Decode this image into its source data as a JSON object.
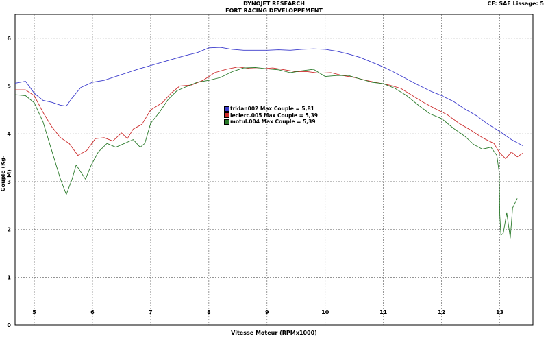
{
  "header": {
    "title_line1": "DYNOJET RESEARCH",
    "title_line2": "FORT RACING DEVELOPPEMENT",
    "cf_info": "CF: SAE  Lissage: 5"
  },
  "chart_data": {
    "type": "line",
    "xlabel": "Vitesse Moteur (RPMx1000)",
    "ylabel": "Couple (Kg-M)",
    "xlim": [
      4.67,
      13.57
    ],
    "ylim": [
      0,
      6.5
    ],
    "x_ticks": [
      "5",
      "6",
      "7",
      "8",
      "9",
      "10",
      "11",
      "12",
      "13"
    ],
    "y_ticks": [
      "0",
      "1",
      "2",
      "3",
      "4",
      "5",
      "6"
    ],
    "grid": true,
    "legend_position": "center-left",
    "series": [
      {
        "name": "tridan002 Max Couple = 5,81",
        "legend": "tridan002 Max Couple = 5,81",
        "color": "#3a3acc",
        "points": [
          [
            4.67,
            5.06
          ],
          [
            4.85,
            5.1
          ],
          [
            5.0,
            4.85
          ],
          [
            5.15,
            4.7
          ],
          [
            5.3,
            4.66
          ],
          [
            5.45,
            4.6
          ],
          [
            5.55,
            4.58
          ],
          [
            5.65,
            4.75
          ],
          [
            5.8,
            4.97
          ],
          [
            6.0,
            5.08
          ],
          [
            6.2,
            5.12
          ],
          [
            6.4,
            5.2
          ],
          [
            6.6,
            5.28
          ],
          [
            6.8,
            5.36
          ],
          [
            7.0,
            5.43
          ],
          [
            7.2,
            5.5
          ],
          [
            7.4,
            5.57
          ],
          [
            7.6,
            5.64
          ],
          [
            7.8,
            5.7
          ],
          [
            8.0,
            5.8
          ],
          [
            8.2,
            5.81
          ],
          [
            8.4,
            5.77
          ],
          [
            8.6,
            5.75
          ],
          [
            8.8,
            5.75
          ],
          [
            9.0,
            5.75
          ],
          [
            9.2,
            5.76
          ],
          [
            9.4,
            5.75
          ],
          [
            9.6,
            5.77
          ],
          [
            9.8,
            5.78
          ],
          [
            10.0,
            5.77
          ],
          [
            10.2,
            5.73
          ],
          [
            10.4,
            5.67
          ],
          [
            10.6,
            5.6
          ],
          [
            10.8,
            5.5
          ],
          [
            11.0,
            5.4
          ],
          [
            11.2,
            5.28
          ],
          [
            11.4,
            5.15
          ],
          [
            11.6,
            5.02
          ],
          [
            11.8,
            4.9
          ],
          [
            12.0,
            4.8
          ],
          [
            12.2,
            4.68
          ],
          [
            12.4,
            4.52
          ],
          [
            12.6,
            4.38
          ],
          [
            12.8,
            4.2
          ],
          [
            13.0,
            4.05
          ],
          [
            13.2,
            3.88
          ],
          [
            13.4,
            3.75
          ]
        ]
      },
      {
        "name": "leclerc.005 Max Couple = 5,39",
        "legend": "leclerc.005 Max Couple = 5,39",
        "color": "#cc2a2a",
        "points": [
          [
            4.67,
            4.92
          ],
          [
            4.85,
            4.92
          ],
          [
            5.0,
            4.8
          ],
          [
            5.15,
            4.45
          ],
          [
            5.3,
            4.15
          ],
          [
            5.45,
            3.92
          ],
          [
            5.6,
            3.8
          ],
          [
            5.75,
            3.55
          ],
          [
            5.9,
            3.65
          ],
          [
            6.05,
            3.9
          ],
          [
            6.2,
            3.92
          ],
          [
            6.35,
            3.85
          ],
          [
            6.5,
            4.02
          ],
          [
            6.6,
            3.9
          ],
          [
            6.7,
            4.1
          ],
          [
            6.85,
            4.2
          ],
          [
            7.0,
            4.5
          ],
          [
            7.2,
            4.65
          ],
          [
            7.35,
            4.85
          ],
          [
            7.5,
            5.0
          ],
          [
            7.7,
            5.02
          ],
          [
            7.9,
            5.12
          ],
          [
            8.1,
            5.28
          ],
          [
            8.3,
            5.35
          ],
          [
            8.5,
            5.4
          ],
          [
            8.7,
            5.37
          ],
          [
            8.9,
            5.36
          ],
          [
            9.1,
            5.38
          ],
          [
            9.3,
            5.34
          ],
          [
            9.5,
            5.3
          ],
          [
            9.7,
            5.3
          ],
          [
            9.9,
            5.27
          ],
          [
            10.1,
            5.28
          ],
          [
            10.3,
            5.22
          ],
          [
            10.5,
            5.18
          ],
          [
            10.7,
            5.12
          ],
          [
            10.9,
            5.07
          ],
          [
            11.1,
            5.02
          ],
          [
            11.3,
            4.95
          ],
          [
            11.5,
            4.8
          ],
          [
            11.7,
            4.65
          ],
          [
            11.9,
            4.52
          ],
          [
            12.1,
            4.4
          ],
          [
            12.3,
            4.22
          ],
          [
            12.5,
            4.08
          ],
          [
            12.7,
            3.92
          ],
          [
            12.9,
            3.8
          ],
          [
            13.0,
            3.6
          ],
          [
            13.1,
            3.48
          ],
          [
            13.2,
            3.62
          ],
          [
            13.3,
            3.52
          ],
          [
            13.4,
            3.6
          ]
        ]
      },
      {
        "name": "motul.004 Max Couple = 5,39",
        "legend": "motul.004 Max Couple = 5,39",
        "color": "#2a7a2a",
        "points": [
          [
            4.67,
            4.82
          ],
          [
            4.85,
            4.8
          ],
          [
            5.0,
            4.65
          ],
          [
            5.15,
            4.25
          ],
          [
            5.25,
            3.85
          ],
          [
            5.35,
            3.45
          ],
          [
            5.45,
            3.05
          ],
          [
            5.55,
            2.73
          ],
          [
            5.65,
            3.05
          ],
          [
            5.72,
            3.35
          ],
          [
            5.8,
            3.2
          ],
          [
            5.88,
            3.05
          ],
          [
            5.98,
            3.35
          ],
          [
            6.1,
            3.62
          ],
          [
            6.25,
            3.8
          ],
          [
            6.4,
            3.72
          ],
          [
            6.55,
            3.8
          ],
          [
            6.7,
            3.88
          ],
          [
            6.82,
            3.72
          ],
          [
            6.9,
            3.8
          ],
          [
            7.0,
            4.22
          ],
          [
            7.15,
            4.45
          ],
          [
            7.3,
            4.72
          ],
          [
            7.45,
            4.9
          ],
          [
            7.6,
            4.98
          ],
          [
            7.8,
            5.08
          ],
          [
            8.0,
            5.12
          ],
          [
            8.2,
            5.18
          ],
          [
            8.4,
            5.3
          ],
          [
            8.6,
            5.38
          ],
          [
            8.8,
            5.39
          ],
          [
            9.0,
            5.36
          ],
          [
            9.2,
            5.34
          ],
          [
            9.4,
            5.28
          ],
          [
            9.6,
            5.32
          ],
          [
            9.8,
            5.35
          ],
          [
            10.0,
            5.2
          ],
          [
            10.2,
            5.22
          ],
          [
            10.4,
            5.22
          ],
          [
            10.6,
            5.15
          ],
          [
            10.8,
            5.08
          ],
          [
            11.0,
            5.05
          ],
          [
            11.2,
            4.95
          ],
          [
            11.4,
            4.8
          ],
          [
            11.6,
            4.6
          ],
          [
            11.8,
            4.42
          ],
          [
            12.0,
            4.32
          ],
          [
            12.2,
            4.12
          ],
          [
            12.4,
            3.95
          ],
          [
            12.55,
            3.78
          ],
          [
            12.7,
            3.68
          ],
          [
            12.85,
            3.72
          ],
          [
            12.95,
            3.55
          ],
          [
            12.99,
            3.2
          ],
          [
            13.0,
            2.3
          ],
          [
            13.02,
            1.88
          ],
          [
            13.06,
            1.92
          ],
          [
            13.12,
            2.35
          ],
          [
            13.18,
            1.82
          ],
          [
            13.22,
            2.45
          ],
          [
            13.3,
            2.65
          ]
        ]
      }
    ]
  }
}
